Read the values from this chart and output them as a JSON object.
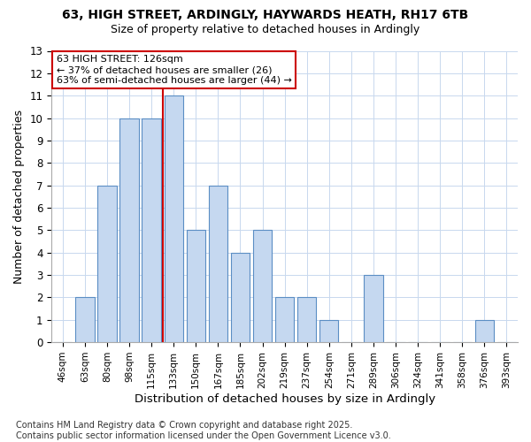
{
  "title1": "63, HIGH STREET, ARDINGLY, HAYWARDS HEATH, RH17 6TB",
  "title2": "Size of property relative to detached houses in Ardingly",
  "xlabel": "Distribution of detached houses by size in Ardingly",
  "ylabel": "Number of detached properties",
  "categories": [
    "46sqm",
    "63sqm",
    "80sqm",
    "98sqm",
    "115sqm",
    "133sqm",
    "150sqm",
    "167sqm",
    "185sqm",
    "202sqm",
    "219sqm",
    "237sqm",
    "254sqm",
    "271sqm",
    "289sqm",
    "306sqm",
    "324sqm",
    "341sqm",
    "358sqm",
    "376sqm",
    "393sqm"
  ],
  "values": [
    0,
    2,
    7,
    10,
    10,
    11,
    5,
    7,
    4,
    5,
    2,
    2,
    1,
    0,
    3,
    0,
    0,
    0,
    0,
    1,
    0
  ],
  "bar_color": "#c5d8f0",
  "bar_edge_color": "#5b8ec4",
  "ref_line_color": "#cc0000",
  "annotation_line1": "63 HIGH STREET: 126sqm",
  "annotation_line2": "← 37% of detached houses are smaller (26)",
  "annotation_line3": "63% of semi-detached houses are larger (44) →",
  "annotation_box_color": "#ffffff",
  "annotation_box_edge_color": "#cc0000",
  "ylim": [
    0,
    13
  ],
  "yticks": [
    0,
    1,
    2,
    3,
    4,
    5,
    6,
    7,
    8,
    9,
    10,
    11,
    12,
    13
  ],
  "grid_color": "#c8d8ee",
  "footer": "Contains HM Land Registry data © Crown copyright and database right 2025.\nContains public sector information licensed under the Open Government Licence v3.0.",
  "bg_color": "#ffffff",
  "plot_bg_color": "#ffffff"
}
